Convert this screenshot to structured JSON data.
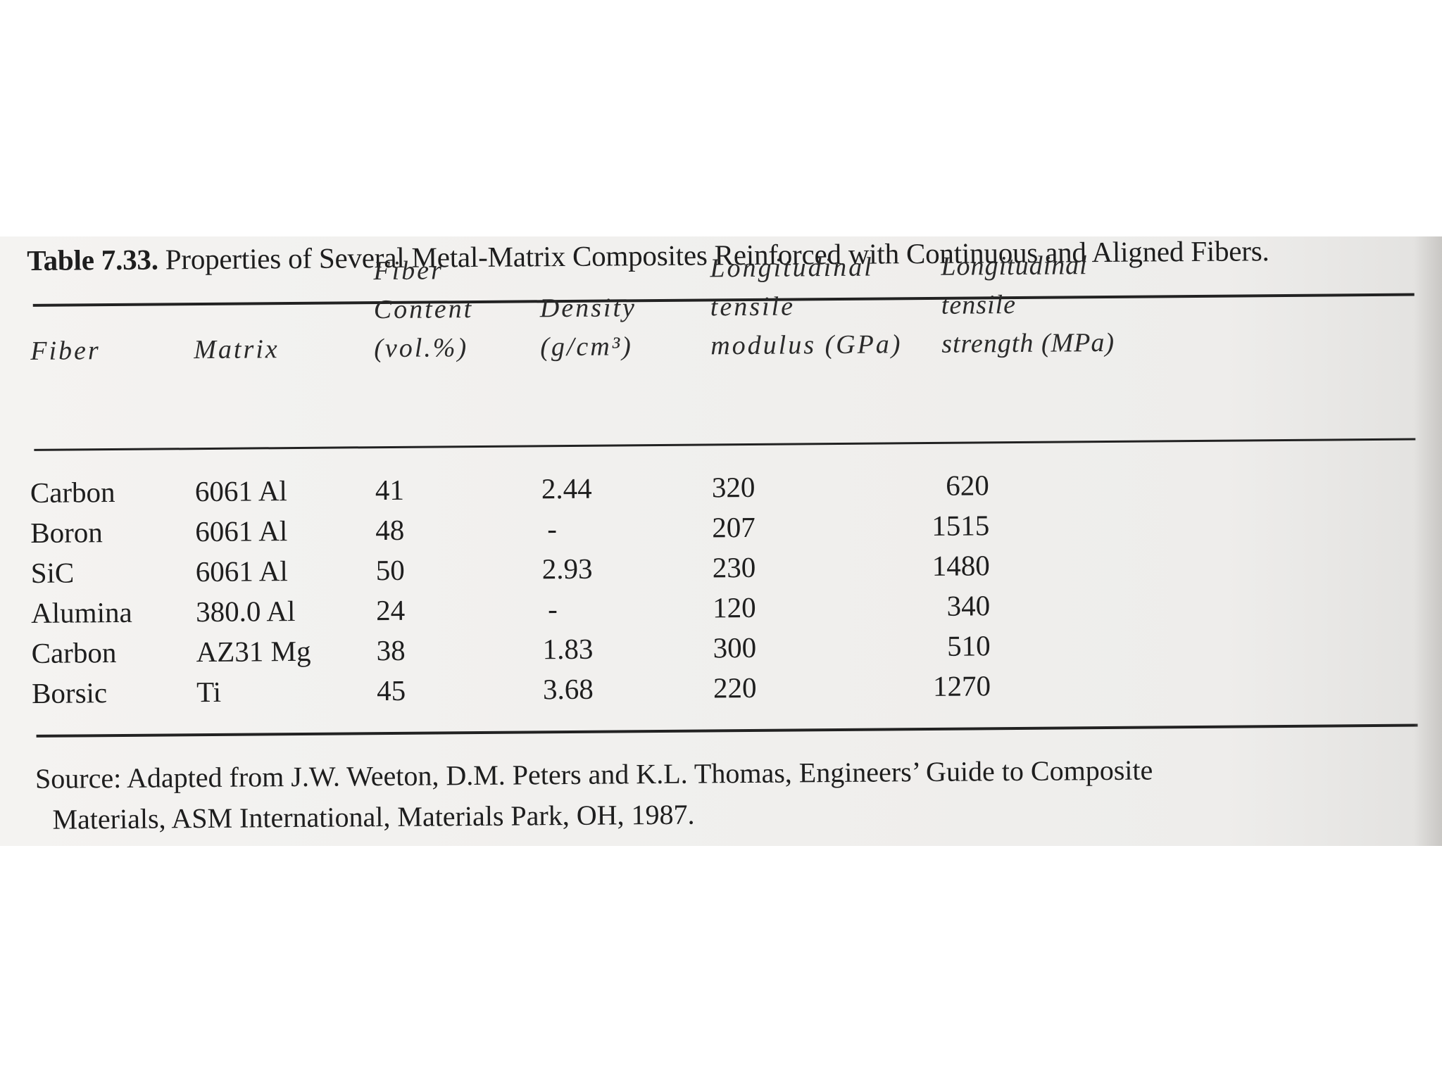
{
  "table": {
    "label": "Table 7.33.",
    "title": "Properties of Several Metal-Matrix Composites Reinforced with Continuous and Aligned Fibers.",
    "headers": {
      "fiber": [
        "Fiber"
      ],
      "matrix": [
        "Matrix"
      ],
      "content": [
        "Fiber",
        "Content",
        "(vol.%)"
      ],
      "density": [
        "Density",
        "(g/cm³)"
      ],
      "modulus": [
        "Longitudinal",
        "tensile",
        "modulus (GPa)"
      ],
      "strength": [
        "Longitudinal",
        "tensile",
        "strength (MPa)"
      ]
    },
    "rows": [
      {
        "fiber": "Carbon",
        "matrix": "6061 Al",
        "content": "41",
        "density": "2.44",
        "modulus": "320",
        "strength": "620"
      },
      {
        "fiber": "Boron",
        "matrix": "6061 Al",
        "content": "48",
        "density": "-",
        "modulus": "207",
        "strength": "1515"
      },
      {
        "fiber": "SiC",
        "matrix": "6061 Al",
        "content": "50",
        "density": "2.93",
        "modulus": "230",
        "strength": "1480"
      },
      {
        "fiber": "Alumina",
        "matrix": "380.0 Al",
        "content": "24",
        "density": "-",
        "modulus": "120",
        "strength": "340"
      },
      {
        "fiber": "Carbon",
        "matrix": "AZ31 Mg",
        "content": "38",
        "density": "1.83",
        "modulus": "300",
        "strength": "510"
      },
      {
        "fiber": "Borsic",
        "matrix": "Ti",
        "content": "45",
        "density": "3.68",
        "modulus": "220",
        "strength": "1270"
      }
    ],
    "source_lines": [
      "Source: Adapted from J.W. Weeton, D.M. Peters and K.L. Thomas, Engineers’ Guide to Composite",
      "Materials, ASM International, Materials Park, OH, 1987."
    ]
  }
}
